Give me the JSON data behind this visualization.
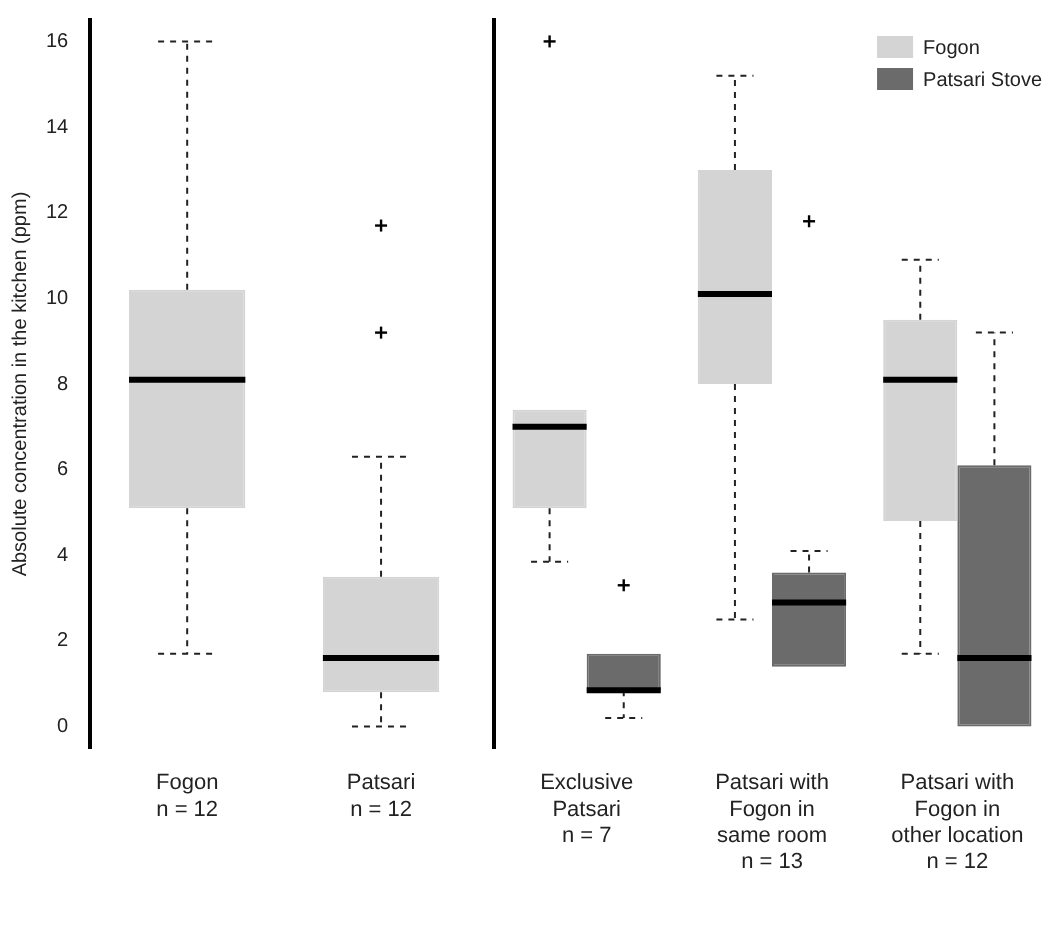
{
  "chart_data": [
    {
      "type": "box",
      "ylabel": "Absolute concentration in the kitchen (ppm)",
      "categories": [
        "Fogon\nn = 12",
        "Patsari\nn = 12"
      ],
      "ylim": [
        -0.5,
        16.5
      ],
      "yticks": [
        0,
        2,
        4,
        6,
        8,
        10,
        12,
        14,
        16
      ],
      "grid": false,
      "legend": false,
      "series": [
        {
          "color": "#d4d4d4",
          "boxes": [
            {
              "low": 1.7,
              "q1": 5.1,
              "median": 8.1,
              "q3": 10.2,
              "high": 16
            },
            {
              "low": 0,
              "q1": 0.8,
              "median": 1.6,
              "q3": 3.5,
              "high": 6.3,
              "outliers": [
                11.7,
                9.2
              ]
            }
          ]
        }
      ]
    },
    {
      "type": "box",
      "categories": [
        "Exclusive\nPatsari\nn = 7",
        "Patsari with\nFogon in\nsame room\nn = 13",
        "Patsari with\nFogon in\nother location\nn = 12"
      ],
      "ylim": [
        -0.5,
        16.5
      ],
      "yticks": [
        0,
        2,
        4,
        6,
        8,
        10,
        12,
        14,
        16
      ],
      "tick_labels": "x",
      "grid": false,
      "legend": "top right",
      "series": [
        {
          "name": "Fogon",
          "color": "#d4d4d4",
          "boxes": [
            {
              "low": 3.85,
              "q1": 5.1,
              "median": 7.0,
              "q3": 7.4,
              "high": 7.4,
              "outliers": [
                16
              ]
            },
            {
              "low": 2.5,
              "q1": 8.0,
              "median": 10.1,
              "q3": 13.0,
              "high": 15.2
            },
            {
              "low": 1.7,
              "q1": 4.8,
              "median": 8.1,
              "q3": 9.5,
              "high": 10.9
            }
          ]
        },
        {
          "name": "Patsari Stove",
          "color": "#6b6b6b",
          "boxes": [
            {
              "low": 0.2,
              "q1": 0.85,
              "median": 0.85,
              "q3": 1.7,
              "high": 1.7,
              "outliers": [
                3.3
              ]
            },
            {
              "low": 1.4,
              "q1": 1.4,
              "median": 2.9,
              "q3": 3.6,
              "high": 4.1,
              "outliers": [
                11.8
              ]
            },
            {
              "low": 0,
              "q1": 0,
              "median": 1.6,
              "q3": 6.1,
              "high": 9.2
            }
          ]
        }
      ]
    }
  ]
}
